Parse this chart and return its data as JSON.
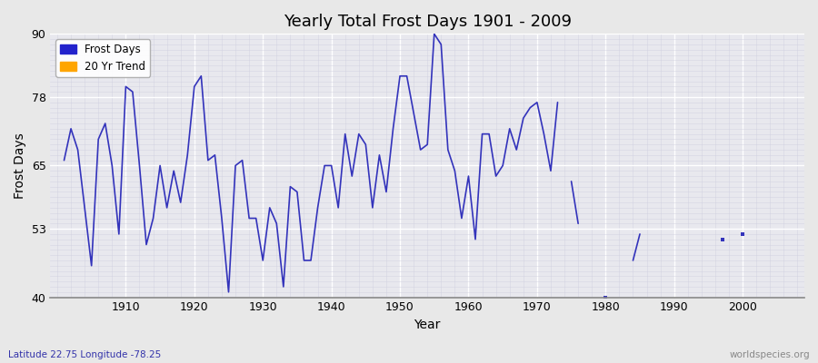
{
  "title": "Yearly Total Frost Days 1901 - 2009",
  "xlabel": "Year",
  "ylabel": "Frost Days",
  "subtitle": "Latitude 22.75 Longitude -78.25",
  "watermark": "worldspecies.org",
  "line_color": "#3333bb",
  "legend_frost_color": "#2222cc",
  "legend_trend_color": "#FFA500",
  "ylim": [
    40,
    90
  ],
  "xlim": [
    1899,
    2009
  ],
  "yticks": [
    40,
    53,
    65,
    78,
    90
  ],
  "xticks": [
    1910,
    1920,
    1930,
    1940,
    1950,
    1960,
    1970,
    1980,
    1990,
    2000
  ],
  "fig_bg": "#e8e8e8",
  "plot_bg": "#e8e8ee",
  "years": [
    1901,
    1902,
    1903,
    1904,
    1905,
    1906,
    1907,
    1908,
    1909,
    1910,
    1911,
    1912,
    1913,
    1914,
    1915,
    1916,
    1917,
    1918,
    1919,
    1920,
    1921,
    1922,
    1923,
    1924,
    1925,
    1926,
    1927,
    1928,
    1929,
    1930,
    1931,
    1932,
    1933,
    1934,
    1935,
    1936,
    1937,
    1938,
    1939,
    1940,
    1941,
    1942,
    1943,
    1944,
    1945,
    1946,
    1947,
    1948,
    1949,
    1950,
    1951,
    1952,
    1953,
    1954,
    1955,
    1956,
    1957,
    1958,
    1959,
    1960,
    1961,
    1962,
    1963,
    1964,
    1965,
    1966,
    1967,
    1968,
    1969,
    1970,
    1971,
    1972,
    1973,
    1975,
    1976,
    1980,
    1984,
    1985,
    1997,
    2000
  ],
  "values": [
    66,
    72,
    68,
    57,
    46,
    70,
    73,
    65,
    52,
    80,
    79,
    65,
    50,
    55,
    65,
    57,
    64,
    58,
    67,
    80,
    82,
    66,
    67,
    55,
    41,
    65,
    66,
    55,
    55,
    47,
    57,
    54,
    42,
    61,
    60,
    47,
    47,
    57,
    65,
    65,
    57,
    71,
    63,
    71,
    69,
    57,
    67,
    60,
    72,
    82,
    82,
    75,
    68,
    69,
    90,
    88,
    68,
    64,
    55,
    63,
    51,
    71,
    71,
    63,
    65,
    72,
    68,
    74,
    76,
    77,
    71,
    64,
    77,
    62,
    54,
    40,
    47,
    52,
    51,
    52
  ]
}
